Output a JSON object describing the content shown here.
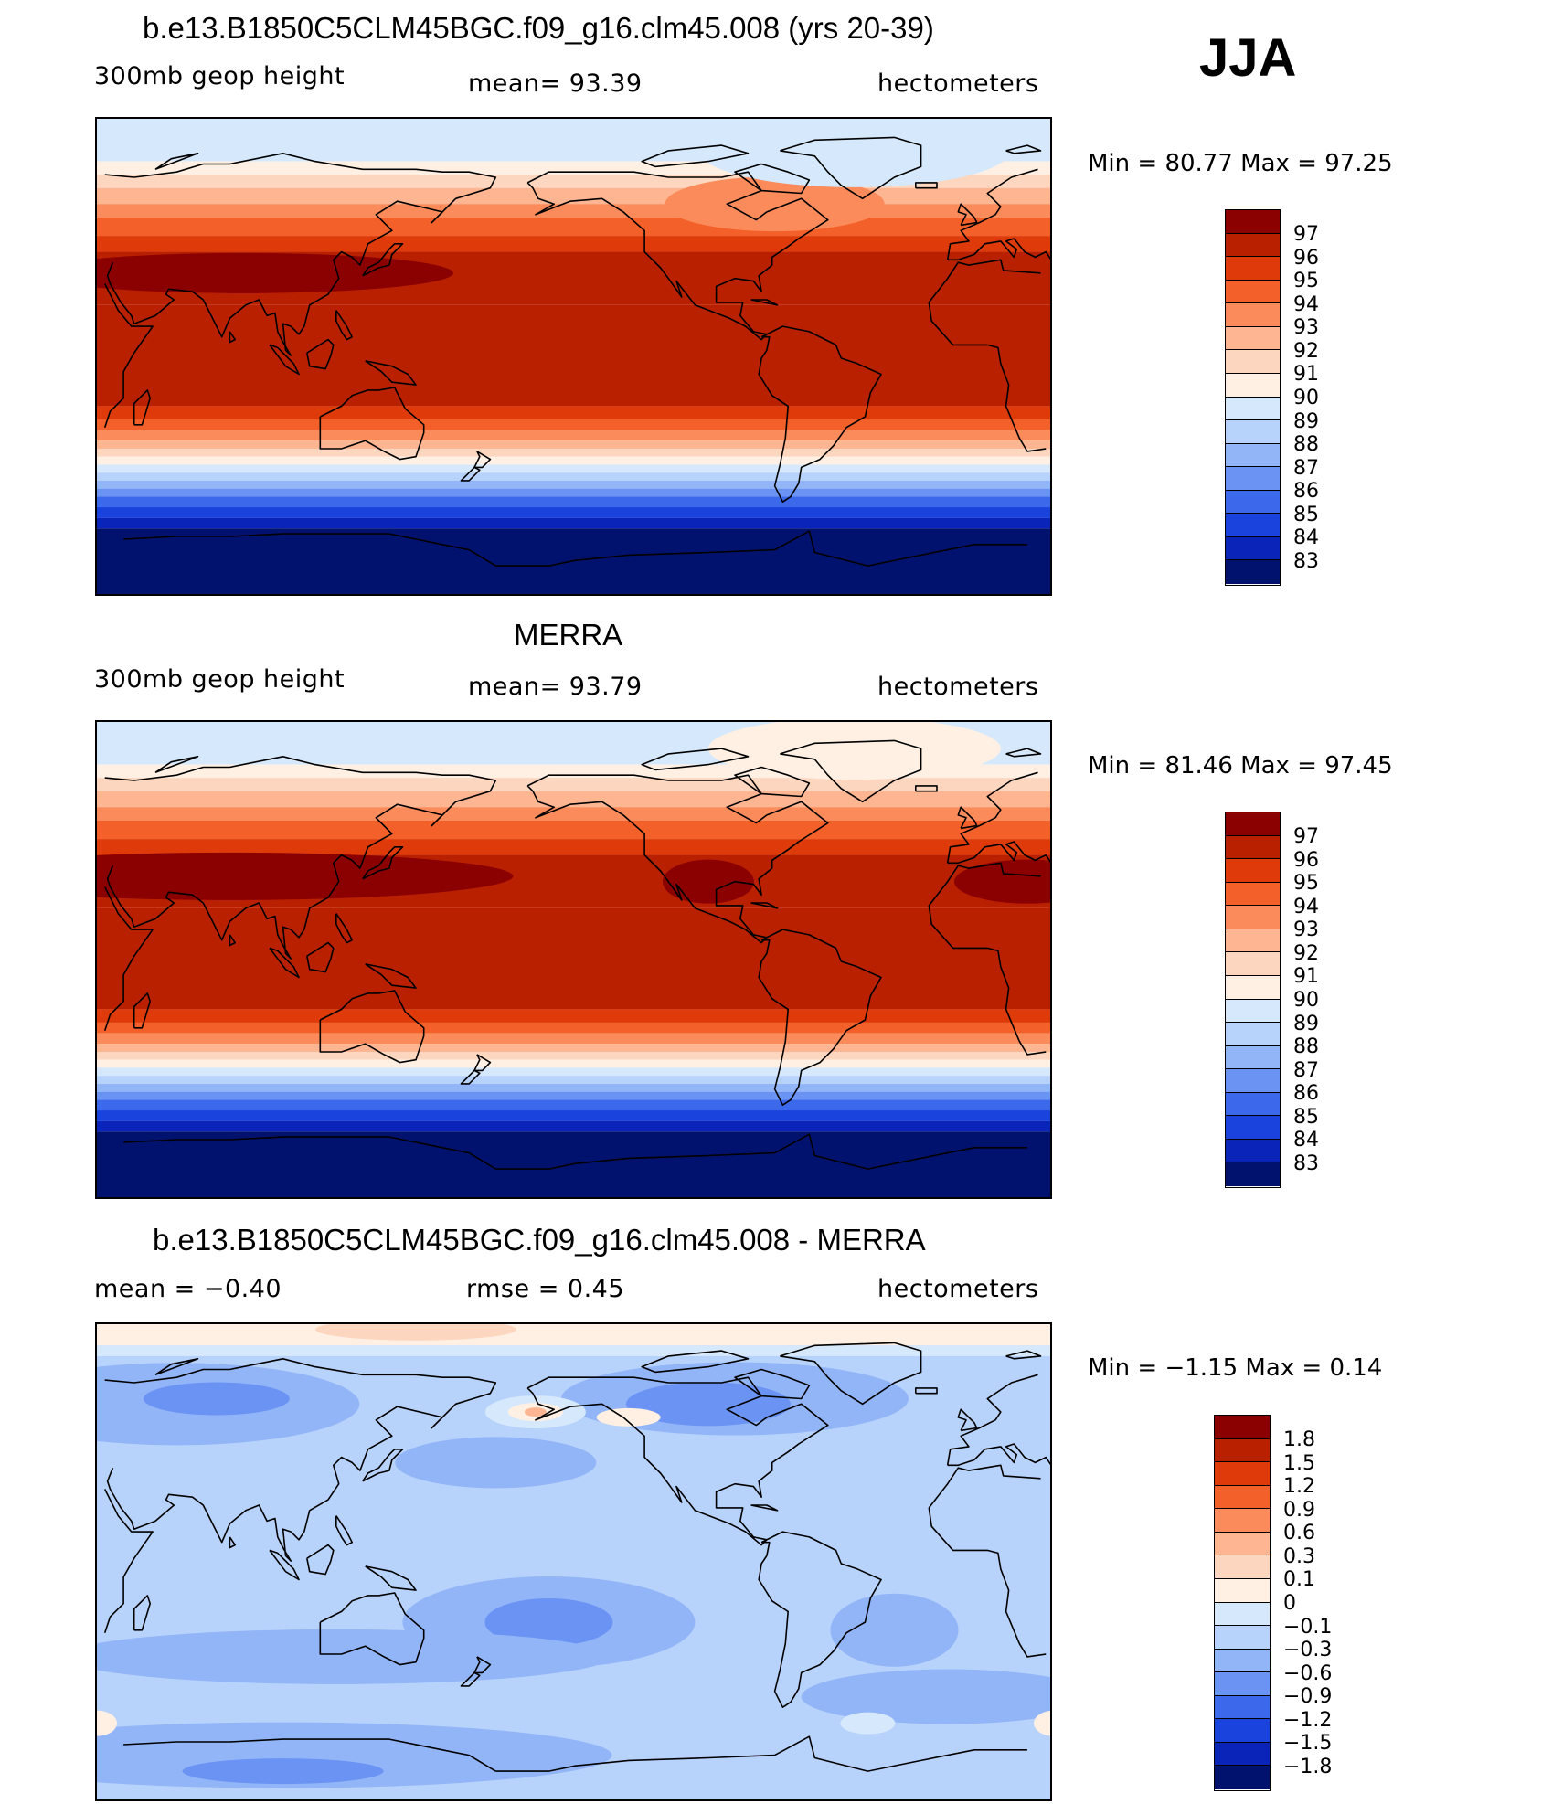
{
  "season": "JJA",
  "panels": [
    {
      "id": "model",
      "title": "b.e13.B1850C5CLM45BGC.f09_g16.clm45.008 (yrs 20-39)",
      "left_label": "300mb  geop  height",
      "center_label": "mean=   93.39",
      "right_label": "hectometers",
      "minmax": "Min  =    80.77  Max  =    97.25",
      "colorbar_labels": [
        "97",
        "96",
        "95",
        "94",
        "93",
        "92",
        "91",
        "90",
        "89",
        "88",
        "87",
        "86",
        "85",
        "84",
        "83"
      ]
    },
    {
      "id": "obs",
      "title": "MERRA",
      "left_label": "300mb  geop  height",
      "center_label": "mean=   93.79",
      "right_label": "hectometers",
      "minmax": "Min  =    81.46  Max  =    97.45",
      "colorbar_labels": [
        "97",
        "96",
        "95",
        "94",
        "93",
        "92",
        "91",
        "90",
        "89",
        "88",
        "87",
        "86",
        "85",
        "84",
        "83"
      ]
    },
    {
      "id": "diff",
      "title": "b.e13.B1850C5CLM45BGC.f09_g16.clm45.008 - MERRA",
      "left_label": "mean  =    −0.40",
      "center_label": "rmse  =     0.45",
      "right_label": "hectometers",
      "minmax": "Min  =    −1.15  Max  =     0.14",
      "colorbar_labels": [
        "1.8",
        "1.5",
        "1.2",
        "0.9",
        "0.6",
        "0.3",
        "0.1",
        "0",
        "−0.1",
        "−0.3",
        "−0.6",
        "−0.9",
        "−1.2",
        "−1.5",
        "−1.8"
      ]
    }
  ],
  "colors": {
    "abs_scale": [
      "#8b0000",
      "#b82000",
      "#de3a0a",
      "#f4602a",
      "#fb8b5a",
      "#fdb592",
      "#fdd6bf",
      "#fff0e3",
      "#d6e8fb",
      "#b7d2fb",
      "#92b5f8",
      "#6b93f3",
      "#3c68ec",
      "#1a43de",
      "#0a23b8",
      "#00126e"
    ],
    "diff_scale": [
      "#8b0000",
      "#b82000",
      "#de3a0a",
      "#f4602a",
      "#fb8b5a",
      "#fdb592",
      "#fdd6bf",
      "#fff0e3",
      "#d6e8fb",
      "#b7d2fb",
      "#92b5f8",
      "#6b93f3",
      "#3c68ec",
      "#1a43de",
      "#0a23b8",
      "#00126e"
    ]
  }
}
